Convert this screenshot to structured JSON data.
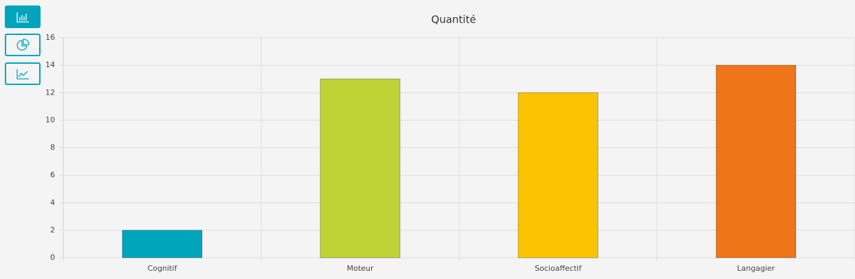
{
  "chart_data": {
    "type": "bar",
    "title": "Quantité",
    "categories": [
      "Cognitif",
      "Moteur",
      "Socioaffectif",
      "Langagier"
    ],
    "values": [
      2,
      13,
      12,
      14
    ],
    "colors": [
      "#00a5bc",
      "#c0d336",
      "#fcc400",
      "#ee7518"
    ],
    "ylim": [
      0,
      16
    ],
    "yticks": [
      0,
      2,
      4,
      6,
      8,
      10,
      12,
      14,
      16
    ],
    "grid": true
  }
}
